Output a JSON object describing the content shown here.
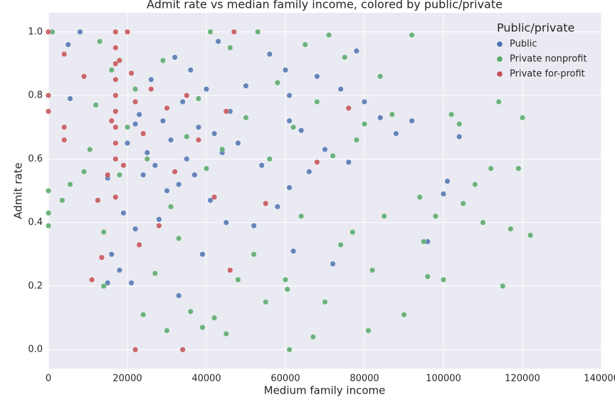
{
  "chart_data": {
    "type": "scatter",
    "title": "Admit rate vs median family income, colored by public/private",
    "x_label": "Medium family income",
    "y_label": "Admit rate",
    "legend_title": "Public/private",
    "legend_position": "upper right",
    "grid": true,
    "xlim": [
      0,
      140000
    ],
    "ylim": [
      -0.06,
      1.06
    ],
    "xticks": [
      0,
      20000,
      40000,
      60000,
      80000,
      100000,
      120000,
      140000
    ],
    "yticks": [
      {
        "value": 0,
        "label": "0.0"
      },
      {
        "value": 0.2,
        "label": "0.2"
      },
      {
        "value": 0.4,
        "label": "0.4"
      },
      {
        "value": 0.6,
        "label": "0.6"
      },
      {
        "value": 0.8,
        "label": "0.8"
      },
      {
        "value": 1,
        "label": "1.0"
      }
    ],
    "series": [
      {
        "name": "Public",
        "color": "#4c72b0",
        "x": [
          5000,
          5500,
          8000,
          15000,
          16000,
          18000,
          19000,
          20000,
          21000,
          22000,
          23000,
          24000,
          25000,
          26000,
          27000,
          28000,
          29000,
          30000,
          31000,
          32000,
          33000,
          34000,
          35000,
          36000,
          37000,
          38000,
          39000,
          40000,
          41000,
          42000,
          43000,
          44000,
          45000,
          46000,
          48000,
          50000,
          52000,
          54000,
          56000,
          58000,
          60000,
          61000,
          61000,
          61000,
          62000,
          64000,
          66000,
          68000,
          70000,
          72000,
          74000,
          76000,
          78000,
          80000,
          84000,
          88000,
          92000,
          96000,
          100000,
          101000,
          104000,
          33000,
          22000,
          15000
        ],
        "values": [
          0.96,
          0.79,
          1.0,
          0.21,
          0.3,
          0.25,
          0.43,
          0.65,
          0.21,
          0.38,
          0.74,
          0.55,
          0.62,
          0.85,
          0.58,
          0.41,
          0.72,
          0.5,
          0.66,
          0.92,
          0.17,
          0.78,
          0.6,
          0.88,
          0.55,
          0.7,
          0.3,
          0.82,
          0.47,
          0.68,
          0.97,
          0.62,
          0.4,
          0.75,
          0.65,
          0.83,
          0.39,
          0.58,
          0.93,
          0.45,
          0.88,
          0.8,
          0.72,
          0.51,
          0.31,
          0.69,
          0.56,
          0.86,
          0.63,
          0.27,
          0.82,
          0.59,
          0.94,
          0.78,
          0.73,
          0.68,
          0.72,
          0.34,
          0.49,
          0.53,
          0.67,
          0.52,
          0.71,
          0.54
        ]
      },
      {
        "name": "Private nonprofit",
        "color": "#55a868",
        "x": [
          0,
          0,
          0,
          1000,
          3500,
          5500,
          9000,
          10500,
          12000,
          13000,
          14000,
          14000,
          16000,
          18000,
          20000,
          22000,
          24000,
          25000,
          27000,
          29000,
          30000,
          31000,
          33000,
          35000,
          36000,
          38000,
          39000,
          40000,
          41000,
          42000,
          44000,
          45000,
          46000,
          48000,
          50000,
          52000,
          53000,
          55000,
          56000,
          58000,
          60000,
          60500,
          61000,
          62000,
          64000,
          65000,
          67000,
          68000,
          70000,
          71000,
          72000,
          74000,
          75000,
          77000,
          78000,
          80000,
          81000,
          82000,
          84000,
          85000,
          87000,
          90000,
          92000,
          94000,
          96000,
          98000,
          100000,
          102000,
          104000,
          105000,
          108000,
          110000,
          112000,
          114000,
          115000,
          117000,
          119000,
          120000,
          122000,
          95000
        ],
        "values": [
          0.5,
          0.43,
          0.39,
          1.0,
          0.47,
          0.52,
          0.56,
          0.63,
          0.77,
          0.97,
          0.37,
          0.2,
          0.88,
          0.55,
          0.7,
          0.82,
          0.11,
          0.6,
          0.24,
          0.91,
          0.06,
          0.45,
          0.35,
          0.67,
          0.12,
          0.79,
          0.07,
          0.57,
          1.0,
          0.1,
          0.63,
          0.05,
          0.95,
          0.22,
          0.73,
          0.3,
          1.0,
          0.15,
          0.6,
          0.84,
          0.22,
          0.19,
          0.0,
          0.7,
          0.42,
          0.96,
          0.04,
          0.78,
          0.15,
          0.99,
          0.61,
          0.33,
          0.92,
          0.37,
          0.66,
          0.71,
          0.06,
          0.25,
          0.86,
          0.42,
          0.74,
          0.11,
          0.99,
          0.48,
          0.23,
          0.42,
          0.22,
          0.74,
          0.71,
          0.46,
          0.52,
          0.4,
          0.57,
          0.78,
          0.2,
          0.38,
          0.57,
          0.73,
          0.36,
          0.34
        ]
      },
      {
        "name": "Private for-profit",
        "color": "#c44e52",
        "x": [
          0,
          0,
          0,
          4000,
          4000,
          4000,
          9000,
          11000,
          12500,
          13500,
          15000,
          16000,
          17000,
          17000,
          17000,
          17000,
          17000,
          17000,
          17000,
          17000,
          17000,
          17000,
          18000,
          19000,
          20000,
          21000,
          22000,
          22000,
          23000,
          24000,
          26000,
          28000,
          30000,
          32000,
          34000,
          35000,
          38000,
          42000,
          45000,
          46000,
          47000,
          55000,
          68000,
          76000
        ],
        "values": [
          1.0,
          0.8,
          0.75,
          0.93,
          0.7,
          0.66,
          0.86,
          0.22,
          0.47,
          0.29,
          0.55,
          0.72,
          1.0,
          0.95,
          0.9,
          0.85,
          0.8,
          0.75,
          0.7,
          0.65,
          0.6,
          0.48,
          0.91,
          0.58,
          1.0,
          0.87,
          0.0,
          0.78,
          0.33,
          0.68,
          0.82,
          0.39,
          0.76,
          0.56,
          0.0,
          0.8,
          0.66,
          0.48,
          0.75,
          0.25,
          1.0,
          0.46,
          0.59,
          0.76
        ]
      }
    ]
  }
}
